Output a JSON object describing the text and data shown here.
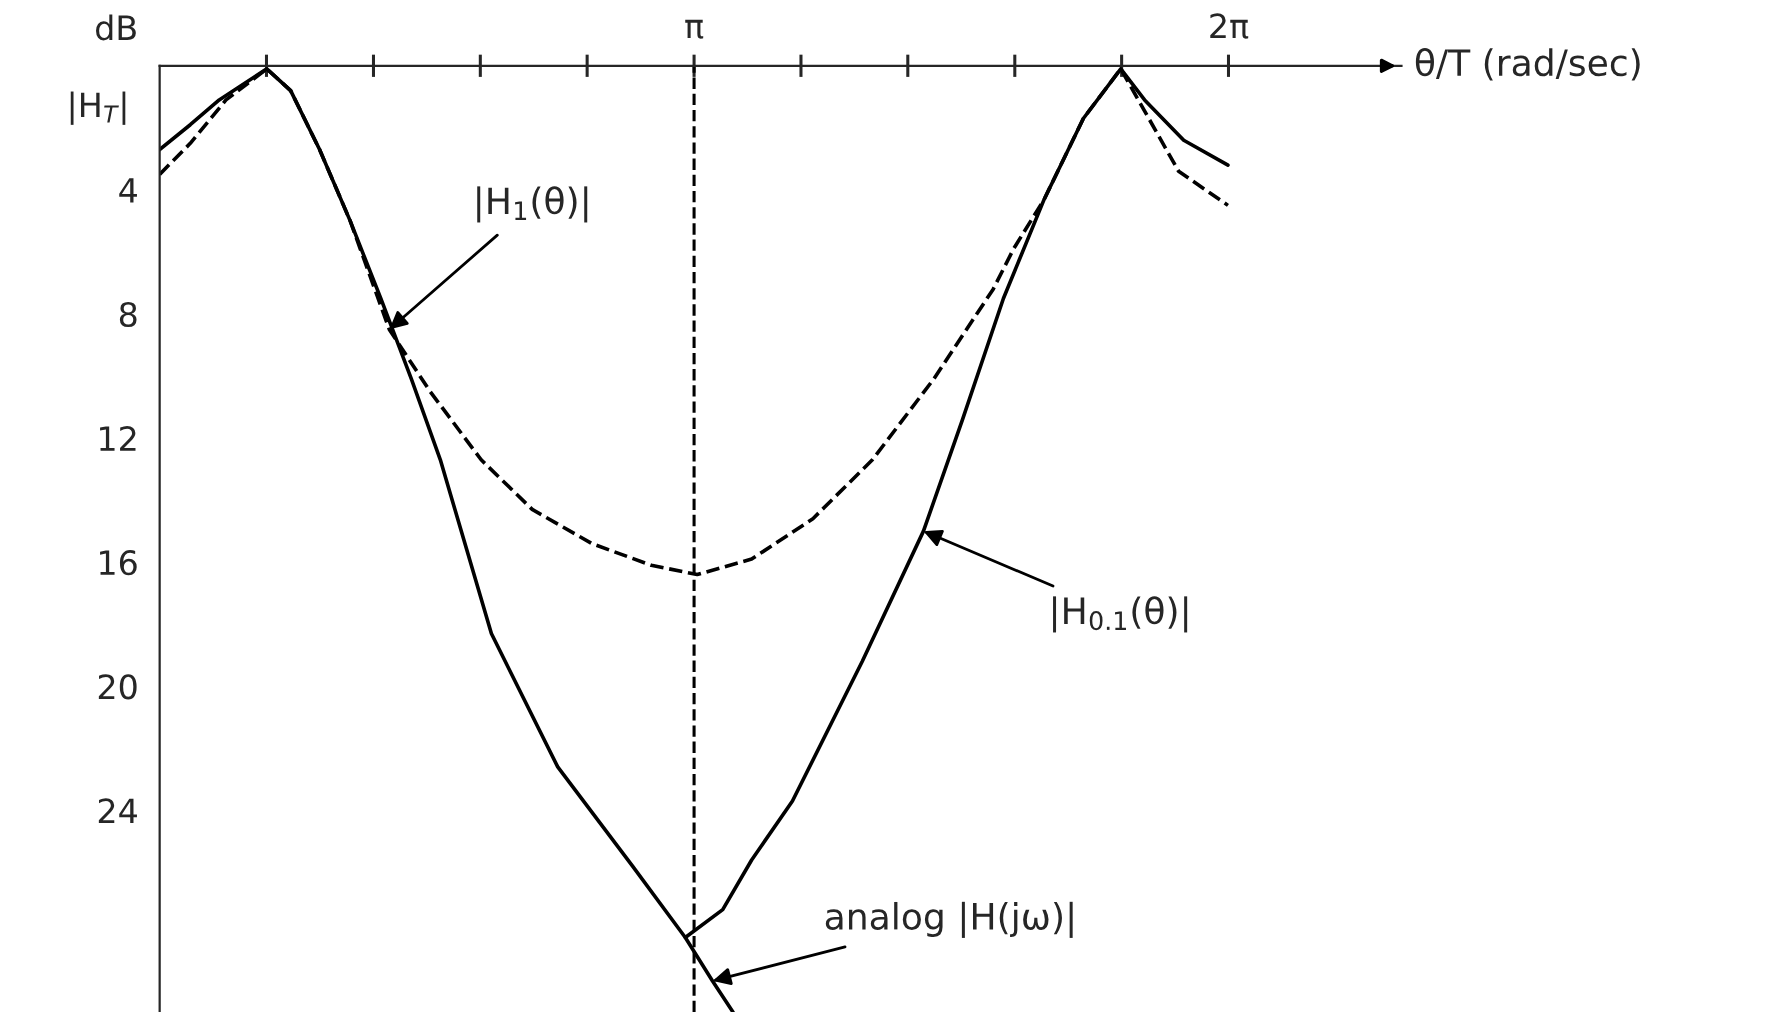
{
  "chart_data": {
    "type": "line",
    "xlabel": "θ/T (rad/sec)",
    "ylabel": "dB",
    "xlim": [
      0,
      7.3
    ],
    "ylim": [
      30.5,
      0
    ],
    "xticks": [
      {
        "value": 0.628,
        "label": null
      },
      {
        "value": 1.257,
        "label": null
      },
      {
        "value": 1.885,
        "label": null
      },
      {
        "value": 2.513,
        "label": null
      },
      {
        "value": 3.1416,
        "label": "π"
      },
      {
        "value": 3.77,
        "label": null
      },
      {
        "value": 4.398,
        "label": null
      },
      {
        "value": 5.027,
        "label": null
      },
      {
        "value": 5.655,
        "label": null
      },
      {
        "value": 6.2832,
        "label": "2π"
      }
    ],
    "yticks": [
      4,
      8,
      12,
      16,
      20,
      24
    ],
    "grid": false,
    "series": [
      {
        "color": "#000000",
        "line_style": "solid",
        "x": [
          0,
          0.18,
          0.35,
          0.63,
          0.77,
          0.94,
          1.12,
          1.3,
          1.48,
          1.65,
          1.95,
          2.34,
          2.78,
          3.09,
          3.25,
          3.37
        ],
        "values": [
          2.7,
          1.9,
          1.1,
          0.1,
          0.8,
          2.7,
          5.0,
          7.5,
          10.1,
          12.7,
          18.3,
          22.6,
          25.8,
          28.1,
          29.5,
          30.5
        ]
      },
      {
        "color": "#000000",
        "line_style": "solid",
        "x": [
          3.09,
          3.31,
          3.48,
          3.72,
          4.13,
          4.49,
          4.72,
          4.96,
          5.2,
          5.43,
          5.65,
          5.79,
          6.02,
          6.28
        ],
        "values": [
          28.1,
          27.2,
          25.6,
          23.7,
          19.2,
          15.0,
          11.4,
          7.5,
          4.3,
          1.7,
          0.1,
          1.1,
          2.4,
          3.2
        ]
      },
      {
        "color": "#000000",
        "line_style": "dashed",
        "x": [
          0,
          0.18,
          0.39,
          0.63,
          0.77,
          0.94,
          1.12,
          1.35,
          1.59,
          1.89,
          2.19,
          2.54,
          2.89,
          3.16,
          3.48,
          3.84,
          4.19,
          4.55,
          4.9,
          5.02,
          5.2,
          5.43,
          5.65,
          5.99,
          6.28
        ],
        "values": [
          3.5,
          2.5,
          1.1,
          0.1,
          0.8,
          2.7,
          5.0,
          8.5,
          10.5,
          12.7,
          14.3,
          15.4,
          16.1,
          16.4,
          15.9,
          14.6,
          12.7,
          10.1,
          7.2,
          5.9,
          4.3,
          1.7,
          0.1,
          3.4,
          4.5
        ]
      }
    ],
    "ref_lines": [
      {
        "axis": "x",
        "value": 3.1416,
        "color": "#000000",
        "line_style": "dashed"
      }
    ],
    "annotations": [
      "|H$_{T}$|",
      {
        "text": "|H$_{1}$(θ)|",
        "x": 1.35,
        "y": 8.5
      },
      {
        "text": "|H$_{0.1}$(θ)|",
        "x": 4.49,
        "y": 15.0
      },
      {
        "text": "analog |H(jω)|",
        "x": 3.25,
        "y": 29.5
      }
    ]
  }
}
